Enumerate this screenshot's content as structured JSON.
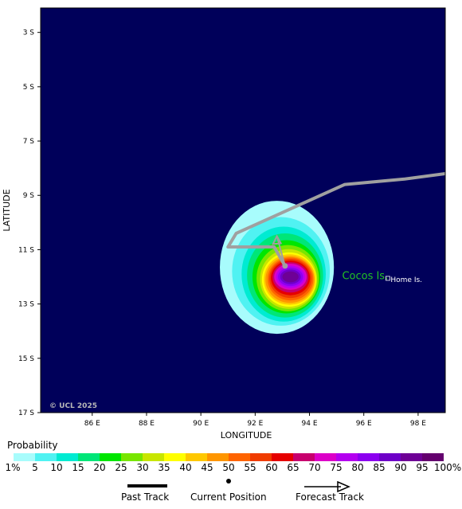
{
  "map": {
    "background_color": "#00005a",
    "credit": "© UCL 2025",
    "x_axis_title": "LONGITUDE",
    "y_axis_title": "LATITUDE",
    "lon_ticks": [
      "86 E",
      "88 E",
      "90 E",
      "92 E",
      "94 E",
      "96 E",
      "98 E"
    ],
    "lat_ticks": [
      "3 S",
      "5 S",
      "7 S",
      "9 S",
      "11 S",
      "13 S",
      "15 S",
      "17 S"
    ],
    "lon_range": [
      84.1,
      99.0
    ],
    "lat_range": [
      2.1,
      17.0
    ],
    "places": [
      {
        "name": "Cocos Is.",
        "lon": 95.2,
        "lat": 12.0,
        "color": "#22c322"
      },
      {
        "name": "Home Is.",
        "lon": 96.9,
        "lat": 12.1,
        "color": "#ffffff"
      }
    ],
    "past_track": [
      [
        99.0,
        8.2
      ],
      [
        97.5,
        8.4
      ],
      [
        95.3,
        8.6
      ],
      [
        91.3,
        10.4
      ],
      [
        91.0,
        10.9
      ],
      [
        92.7,
        10.9
      ],
      [
        93.1,
        11.6
      ]
    ],
    "forecast_track": [
      [
        93.1,
        11.6
      ],
      [
        92.8,
        10.5
      ]
    ],
    "current_position": [
      93.1,
      11.6
    ],
    "probability_field": {
      "center": [
        93.3,
        12.0
      ],
      "levels": [
        {
          "pct": 1,
          "rx": 2.1,
          "ry": 2.45,
          "dx": -0.5,
          "dy": -0.35
        },
        {
          "pct": 5,
          "rx": 1.8,
          "ry": 2.0,
          "dx": -0.35,
          "dy": -0.2
        },
        {
          "pct": 10,
          "rx": 1.55,
          "ry": 1.75,
          "dx": -0.25,
          "dy": -0.1
        },
        {
          "pct": 15,
          "rx": 1.4,
          "ry": 1.55,
          "dx": -0.2,
          "dy": -0.05
        },
        {
          "pct": 20,
          "rx": 1.25,
          "ry": 1.35,
          "dx": -0.15,
          "dy": 0
        },
        {
          "pct": 25,
          "rx": 1.15,
          "ry": 1.22,
          "dx": -0.1,
          "dy": 0.05
        },
        {
          "pct": 30,
          "rx": 1.05,
          "ry": 1.1,
          "dx": -0.07,
          "dy": 0.08
        },
        {
          "pct": 35,
          "rx": 1.0,
          "ry": 1.0,
          "dx": -0.05,
          "dy": 0.1
        },
        {
          "pct": 40,
          "rx": 0.95,
          "ry": 0.93,
          "dx": -0.03,
          "dy": 0.1
        },
        {
          "pct": 45,
          "rx": 0.9,
          "ry": 0.86,
          "dx": -0.02,
          "dy": 0.1
        },
        {
          "pct": 50,
          "rx": 0.84,
          "ry": 0.79,
          "dx": 0,
          "dy": 0.08
        },
        {
          "pct": 55,
          "rx": 0.78,
          "ry": 0.72,
          "dx": 0,
          "dy": 0.06
        },
        {
          "pct": 60,
          "rx": 0.72,
          "ry": 0.64,
          "dx": 0,
          "dy": 0.04
        },
        {
          "pct": 65,
          "rx": 0.66,
          "ry": 0.56,
          "dx": 0,
          "dy": 0.02
        },
        {
          "pct": 70,
          "rx": 0.6,
          "ry": 0.48,
          "dx": 0,
          "dy": 0
        },
        {
          "pct": 75,
          "rx": 0.53,
          "ry": 0.41,
          "dx": 0,
          "dy": 0
        },
        {
          "pct": 80,
          "rx": 0.46,
          "ry": 0.34,
          "dx": 0,
          "dy": 0
        },
        {
          "pct": 85,
          "rx": 0.38,
          "ry": 0.27,
          "dx": 0,
          "dy": 0
        },
        {
          "pct": 90,
          "rx": 0.3,
          "ry": 0.2,
          "dx": 0,
          "dy": 0
        }
      ]
    }
  },
  "legend": {
    "title": "Probability",
    "colors": [
      "#a8fcfc",
      "#50f2f2",
      "#00ebd2",
      "#00e678",
      "#00e600",
      "#78e600",
      "#c8e600",
      "#ffff00",
      "#ffc800",
      "#ff9600",
      "#ff6400",
      "#f03c00",
      "#e60000",
      "#c8006e",
      "#dc00c8",
      "#b400f0",
      "#8c00f0",
      "#6e00c8",
      "#6e0096",
      "#64006e"
    ],
    "labels": [
      "1%",
      "5",
      "10",
      "15",
      "20",
      "25",
      "30",
      "35",
      "40",
      "45",
      "50",
      "55",
      "60",
      "65",
      "70",
      "75",
      "80",
      "85",
      "90",
      "95",
      "100%"
    ]
  },
  "key": {
    "past_track": "Past Track",
    "current_position": "Current Position",
    "forecast_track": "Forecast Track"
  }
}
